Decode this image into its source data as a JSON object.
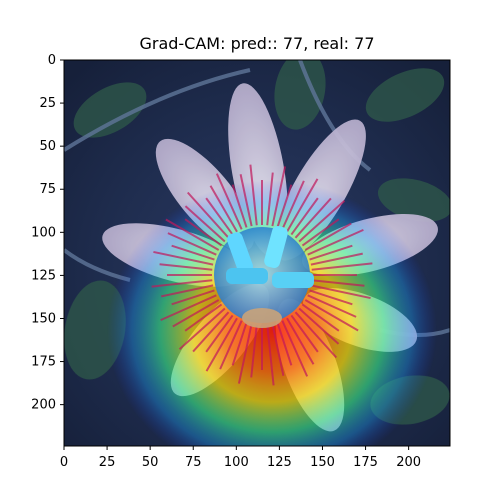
{
  "figure": {
    "title": "Grad-CAM: pred:: 77, real: 77",
    "image_extent": {
      "x": [
        0,
        224
      ],
      "y": [
        0,
        224
      ]
    },
    "x_ticks": [
      0,
      25,
      50,
      75,
      100,
      125,
      150,
      175,
      200
    ],
    "y_ticks": [
      0,
      25,
      50,
      75,
      100,
      125,
      150,
      175,
      200
    ],
    "y_inverted": true,
    "overlay": "gradcam-heatmap-jet",
    "subject": "passion-flower-photo",
    "colors": {
      "background_dark": "#1e2a44",
      "heat_peak": "#ff1a00",
      "heat_mid": "#ffe000",
      "heat_low": "#1aa6ff"
    }
  }
}
